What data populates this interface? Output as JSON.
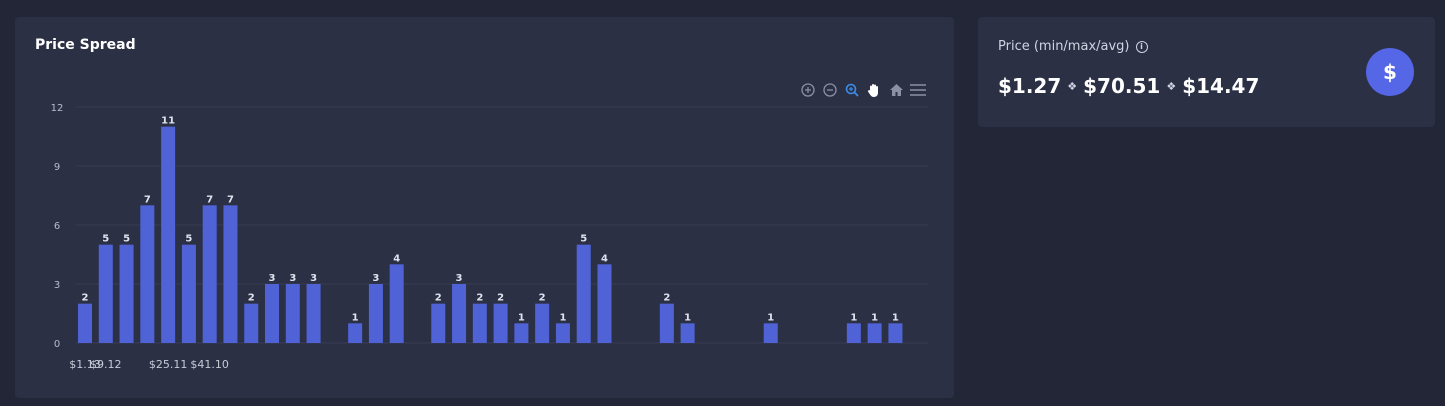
{
  "chart_card": {
    "title": "Price Spread",
    "toolbar": [
      "zoom-in-icon",
      "zoom-out-icon",
      "zoom-selection-icon",
      "pan-icon",
      "reset-home-icon",
      "menu-icon"
    ]
  },
  "price_card": {
    "label": "Price (min/max/avg)",
    "min": "$1.27",
    "max": "$70.51",
    "avg": "$14.47",
    "separator": "❖",
    "badge_symbol": "$"
  },
  "colors": {
    "bar": "#4f63d6",
    "accent": "#5566e6",
    "active_tool": "#3c8ce7"
  },
  "chart_data": {
    "type": "bar",
    "title": "Price Spread",
    "ylim": [
      0,
      12
    ],
    "yticks": [
      0,
      3,
      6,
      9,
      12
    ],
    "values": [
      2,
      5,
      5,
      7,
      11,
      5,
      7,
      7,
      2,
      3,
      3,
      3,
      0,
      1,
      3,
      4,
      0,
      2,
      3,
      2,
      2,
      1,
      2,
      1,
      5,
      4,
      0,
      0,
      2,
      1,
      0,
      0,
      0,
      1,
      0,
      0,
      0,
      1,
      1,
      1
    ],
    "x_tick_labels": [
      {
        "index": 0,
        "label": "$1.13"
      },
      {
        "index": 1,
        "label": "$9.12"
      },
      {
        "index": 4,
        "label": "$25.11"
      },
      {
        "index": 6,
        "label": "$41.10"
      }
    ],
    "grid": true,
    "data_labels": true
  }
}
